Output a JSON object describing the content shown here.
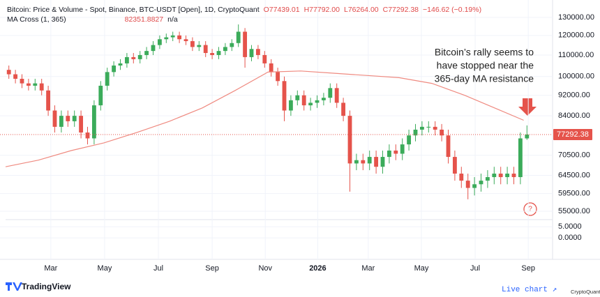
{
  "chart_data": {
    "type": "candlestick",
    "title": "Bitcoin: Price & Volume - Spot, Binance, BTC-USDT [Open], 1D, CryptoQuant",
    "ohlc_labels": [
      "O77439.01",
      "H77792.00",
      "L76264.00",
      "C77292.38",
      "−146.62 (−0.19%)"
    ],
    "indicator_label": "MA Cross (1, 365)",
    "indicator_value": "82351.8827",
    "indicator_extra": "n/a",
    "annotation": [
      "Bitcoin’s rally seems to",
      "have stopped near the",
      "365-day MA resistance"
    ],
    "marker": "?",
    "log_scale": true,
    "grid": true,
    "up_color": "#3bab5a",
    "down_color": "#e5534b",
    "xlim": [
      0,
      80
    ],
    "xticks": [
      {
        "value": 6.9,
        "label": "Mar"
      },
      {
        "value": 15.1,
        "label": "May"
      },
      {
        "value": 23.3,
        "label": "Jul"
      },
      {
        "value": 31.5,
        "label": "Sep"
      },
      {
        "value": 39.6,
        "label": "Nov"
      },
      {
        "value": 47.6,
        "label": "2026"
      },
      {
        "value": 55.3,
        "label": "Mar"
      },
      {
        "value": 63.4,
        "label": "May"
      },
      {
        "value": 71.6,
        "label": "Jul"
      },
      {
        "value": 79.7,
        "label": "Sep"
      }
    ],
    "ylim": [
      53000,
      137000
    ],
    "yticks": [
      {
        "value": 130000,
        "label": "130000.00"
      },
      {
        "value": 120000,
        "label": "120000.00"
      },
      {
        "value": 110000,
        "label": "110000.00"
      },
      {
        "value": 100000,
        "label": "100000.00"
      },
      {
        "value": 92000,
        "label": "92000.00"
      },
      {
        "value": 84000,
        "label": "84000.00"
      },
      {
        "value": 70500,
        "label": "70500.00"
      },
      {
        "value": 64500,
        "label": "64500.00"
      },
      {
        "value": 59500,
        "label": "59500.00"
      },
      {
        "value": 55000,
        "label": "55000.00"
      }
    ],
    "y2lim": [
      -9,
      7.25
    ],
    "y2ticks": [
      {
        "value": 5,
        "label": "5.0000"
      },
      {
        "value": 0,
        "label": "0.0000"
      }
    ],
    "last_price": 77292.38,
    "last_price_color": "#e5534b",
    "open": [
      103000,
      101000,
      99000,
      97000,
      96000,
      97000,
      94000,
      86000,
      80000,
      84000,
      82000,
      84000,
      78000,
      76000,
      88000,
      96000,
      102000,
      105000,
      106000,
      109000,
      108000,
      110000,
      112000,
      115000,
      118000,
      119000,
      120000,
      118000,
      117000,
      114000,
      115000,
      111000,
      110000,
      112000,
      114000,
      116000,
      122000,
      109000,
      113000,
      110000,
      106000,
      102000,
      98000,
      86000,
      90000,
      92000,
      88000,
      89000,
      90000,
      91000,
      95000,
      89000,
      84000,
      68000,
      69000,
      68000,
      70000,
      67000,
      70000,
      72000,
      71000,
      74000,
      77000,
      79000,
      80000,
      80000,
      79000,
      77000,
      70000,
      65000,
      63000,
      61000,
      62000,
      63000,
      64000,
      65000,
      64000,
      65000,
      64000,
      76000
    ],
    "high": [
      105000,
      103000,
      101000,
      99000,
      99000,
      99000,
      96000,
      88000,
      86000,
      86000,
      86000,
      86000,
      80000,
      90000,
      98000,
      104000,
      107000,
      108000,
      111000,
      111000,
      112000,
      114000,
      117000,
      120000,
      121000,
      122000,
      122000,
      120000,
      119000,
      117000,
      117000,
      113000,
      114000,
      116000,
      118000,
      126000,
      124000,
      115000,
      115000,
      112000,
      108000,
      104000,
      100000,
      92000,
      94000,
      94000,
      91000,
      92000,
      93000,
      97000,
      97000,
      91000,
      86000,
      71000,
      71000,
      72000,
      72000,
      72000,
      74000,
      74000,
      76000,
      79000,
      81000,
      82000,
      82000,
      82000,
      81000,
      79000,
      72000,
      67000,
      65000,
      64000,
      65000,
      66000,
      67000,
      67000,
      67000,
      67000,
      78000,
      80500
    ],
    "low": [
      99000,
      97000,
      95000,
      94000,
      94000,
      92000,
      84000,
      78000,
      78000,
      80000,
      80000,
      76000,
      74000,
      74000,
      86000,
      94000,
      100000,
      103000,
      104000,
      106000,
      106000,
      108000,
      110000,
      113000,
      116000,
      117000,
      116000,
      115000,
      112000,
      112000,
      109000,
      108000,
      108000,
      110000,
      112000,
      114000,
      104000,
      107000,
      108000,
      104000,
      100000,
      96000,
      82000,
      84000,
      88000,
      86000,
      86000,
      87000,
      88000,
      89000,
      87000,
      82000,
      60000,
      66000,
      66000,
      66000,
      65000,
      65000,
      68000,
      69000,
      69000,
      72000,
      75000,
      77000,
      78000,
      77000,
      75000,
      68000,
      63000,
      61000,
      58000,
      59000,
      60000,
      61000,
      62000,
      62000,
      62000,
      62000,
      62000,
      75500
    ],
    "close": [
      101000,
      99000,
      97000,
      96000,
      97000,
      94000,
      86000,
      80000,
      84000,
      82000,
      84000,
      78000,
      76000,
      88000,
      96000,
      102000,
      105000,
      106000,
      109000,
      108000,
      110000,
      112000,
      115000,
      118000,
      119000,
      120000,
      118000,
      117000,
      114000,
      115000,
      111000,
      110000,
      112000,
      114000,
      116000,
      122000,
      109000,
      113000,
      110000,
      106000,
      102000,
      98000,
      86000,
      90000,
      92000,
      88000,
      89000,
      90000,
      91000,
      95000,
      89000,
      84000,
      68000,
      69000,
      68000,
      70000,
      67000,
      70000,
      72000,
      71000,
      74000,
      77000,
      79000,
      80000,
      80000,
      79000,
      77000,
      70000,
      65000,
      63000,
      61000,
      62000,
      63000,
      64000,
      65000,
      64000,
      65000,
      64000,
      76000,
      77292.38
    ],
    "ma": {
      "color": "#ef8a80",
      "x": [
        0,
        5,
        10,
        15,
        20,
        25,
        30,
        35,
        40,
        45,
        50,
        55,
        60,
        65,
        70,
        75,
        79
      ],
      "values": [
        67000,
        69000,
        72000,
        74500,
        78000,
        82000,
        87000,
        94000,
        102000,
        102500,
        101500,
        100500,
        99500,
        97000,
        92000,
        86500,
        82351.88
      ]
    },
    "brand": "TradingView",
    "live_chart": "Live chart ↗",
    "source": "CryptoQuant"
  }
}
